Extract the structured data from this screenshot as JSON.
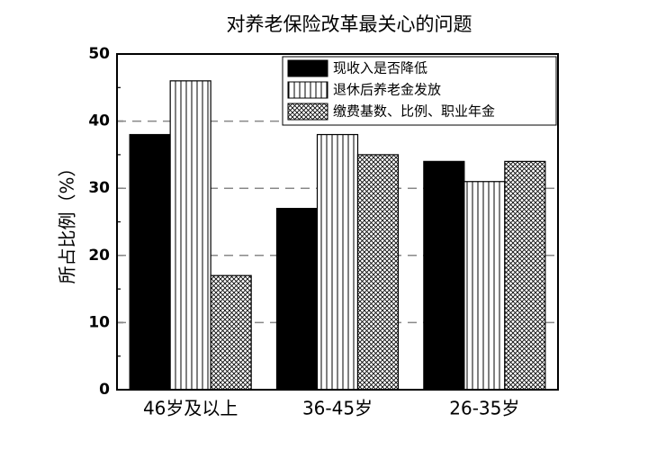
{
  "chart_data": {
    "type": "bar",
    "title": "对养老保险改革最关心的问题",
    "y_label": "所占比例（%）",
    "categories": [
      "46岁及以上",
      "36-45岁",
      "26-35岁"
    ],
    "series": [
      {
        "name": "现收入是否降低",
        "color": "#000000",
        "pattern": "solid",
        "values": [
          38,
          27,
          34
        ]
      },
      {
        "name": "退休后养老金发放",
        "color": "#000000",
        "pattern": "vertical",
        "values": [
          46,
          38,
          31
        ]
      },
      {
        "name": "缴费基数、比例、职业年金",
        "color": "#000000",
        "pattern": "crosshatch",
        "values": [
          17,
          35,
          34
        ]
      }
    ],
    "ylim": [
      0,
      50
    ],
    "yticks": [
      0,
      10,
      20,
      30,
      40,
      50
    ],
    "grid": true,
    "legend": "upper right"
  }
}
